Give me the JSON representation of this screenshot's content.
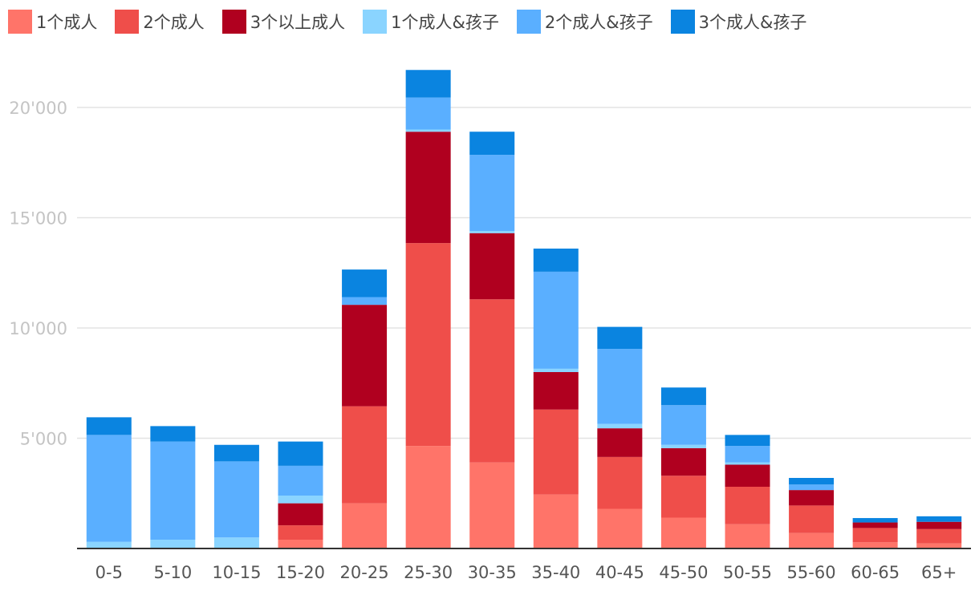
{
  "chart_data": {
    "type": "bar",
    "stacked": true,
    "categories": [
      "0-5",
      "5-10",
      "10-15",
      "15-20",
      "20-25",
      "25-30",
      "30-35",
      "35-40",
      "40-45",
      "45-50",
      "50-55",
      "55-60",
      "60-65",
      "65+"
    ],
    "series": [
      {
        "name": "1个成人",
        "color": "#ff7469",
        "values": [
          0,
          0,
          0,
          400,
          2050,
          4650,
          3900,
          2450,
          1800,
          1400,
          1100,
          700,
          280,
          230
        ]
      },
      {
        "name": "2个成人",
        "color": "#ef4e4a",
        "values": [
          0,
          0,
          0,
          650,
          4400,
          9200,
          7400,
          3850,
          2350,
          1900,
          1700,
          1250,
          650,
          650
        ]
      },
      {
        "name": "3个以上成人",
        "color": "#b0001f",
        "values": [
          0,
          0,
          0,
          1000,
          4600,
          5050,
          3000,
          1700,
          1300,
          1250,
          1000,
          700,
          250,
          330
        ]
      },
      {
        "name": "1个成人&孩子",
        "color": "#8ad4ff",
        "values": [
          300,
          400,
          500,
          350,
          0,
          100,
          100,
          150,
          200,
          150,
          100,
          0,
          0,
          0
        ]
      },
      {
        "name": "2个成人&孩子",
        "color": "#5aafff",
        "values": [
          4850,
          4450,
          3450,
          1350,
          350,
          1450,
          3450,
          4400,
          3400,
          1800,
          750,
          250,
          0,
          0
        ]
      },
      {
        "name": "3个成人&孩子",
        "color": "#0a84e0",
        "values": [
          800,
          700,
          750,
          1100,
          1250,
          1250,
          1050,
          1050,
          1000,
          800,
          500,
          300,
          200,
          250
        ]
      }
    ],
    "yticks": [
      5000,
      10000,
      15000,
      20000
    ],
    "ytick_labels": [
      "5'000",
      "10'000",
      "15'000",
      "20'000"
    ],
    "ylim": [
      0,
      22500
    ],
    "grid": true,
    "legend_position": "top-left",
    "title": "",
    "xlabel": "",
    "ylabel": ""
  }
}
